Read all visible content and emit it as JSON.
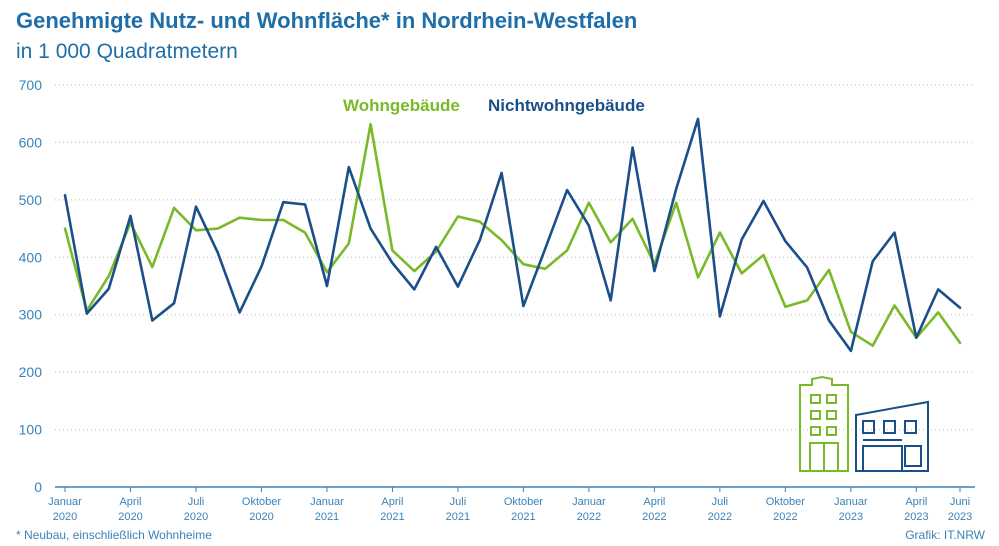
{
  "title": "Genehmigte Nutz- und Wohnfläche* in Nordrhein-Westfalen",
  "subtitle": "in 1 000 Quadratmetern",
  "footnote": "*  Neubau, einschließlich Wohnheime",
  "source": "Grafik: IT.NRW",
  "colors": {
    "wohn": "#7ab929",
    "nichtwohn": "#1b4f8a",
    "axis_text": "#3a82b8",
    "title": "#1f6ea8",
    "grid": "#c8c8c8"
  },
  "icons": [
    "residential-building-icon",
    "commercial-building-icon"
  ],
  "chart_data": {
    "type": "line",
    "title": "Genehmigte Nutz- und Wohnfläche* in Nordrhein-Westfalen",
    "subtitle": "in 1 000 Quadratmetern",
    "ylim": [
      0,
      700
    ],
    "yticks": [
      0,
      100,
      200,
      300,
      400,
      500,
      600,
      700
    ],
    "grid": true,
    "legend_position": "top-center",
    "x": [
      "2020-01",
      "2020-02",
      "2020-03",
      "2020-04",
      "2020-05",
      "2020-06",
      "2020-07",
      "2020-08",
      "2020-09",
      "2020-10",
      "2020-11",
      "2020-12",
      "2021-01",
      "2021-02",
      "2021-03",
      "2021-04",
      "2021-05",
      "2021-06",
      "2021-07",
      "2021-08",
      "2021-09",
      "2021-10",
      "2021-11",
      "2021-12",
      "2022-01",
      "2022-02",
      "2022-03",
      "2022-04",
      "2022-05",
      "2022-06",
      "2022-07",
      "2022-08",
      "2022-09",
      "2022-10",
      "2022-11",
      "2022-12",
      "2023-01",
      "2023-02",
      "2023-03",
      "2023-04",
      "2023-05",
      "2023-06"
    ],
    "xticks": [
      {
        "index": 0,
        "line1": "Januar",
        "line2": "2020"
      },
      {
        "index": 3,
        "line1": "April",
        "line2": "2020"
      },
      {
        "index": 6,
        "line1": "Juli",
        "line2": "2020"
      },
      {
        "index": 9,
        "line1": "Oktober",
        "line2": "2020"
      },
      {
        "index": 12,
        "line1": "Januar",
        "line2": "2021"
      },
      {
        "index": 15,
        "line1": "April",
        "line2": "2021"
      },
      {
        "index": 18,
        "line1": "Juli",
        "line2": "2021"
      },
      {
        "index": 21,
        "line1": "Oktober",
        "line2": "2021"
      },
      {
        "index": 24,
        "line1": "Januar",
        "line2": "2022"
      },
      {
        "index": 27,
        "line1": "April",
        "line2": "2022"
      },
      {
        "index": 30,
        "line1": "Juli",
        "line2": "2022"
      },
      {
        "index": 33,
        "line1": "Oktober",
        "line2": "2022"
      },
      {
        "index": 36,
        "line1": "Januar",
        "line2": "2023"
      },
      {
        "index": 39,
        "line1": "April",
        "line2": "2023"
      },
      {
        "index": 41,
        "line1": "Juni",
        "line2": "2023"
      }
    ],
    "series": [
      {
        "name": "Wohngebäude",
        "color": "#7ab929",
        "values": [
          450,
          307,
          367,
          460,
          383,
          486,
          447,
          450,
          469,
          465,
          465,
          443,
          374,
          424,
          632,
          412,
          376,
          410,
          471,
          462,
          430,
          388,
          380,
          412,
          495,
          426,
          467,
          388,
          495,
          365,
          443,
          372,
          404,
          314,
          325,
          378,
          270,
          246,
          316,
          260,
          304,
          251
        ]
      },
      {
        "name": "Nichtwohngebäude",
        "color": "#1b4f8a",
        "values": [
          508,
          302,
          345,
          472,
          290,
          320,
          488,
          408,
          304,
          384,
          496,
          492,
          350,
          557,
          450,
          390,
          344,
          418,
          349,
          430,
          547,
          315,
          415,
          517,
          455,
          325,
          591,
          376,
          519,
          641,
          297,
          431,
          498,
          428,
          382,
          290,
          237,
          393,
          443,
          260,
          344,
          312
        ]
      }
    ]
  }
}
